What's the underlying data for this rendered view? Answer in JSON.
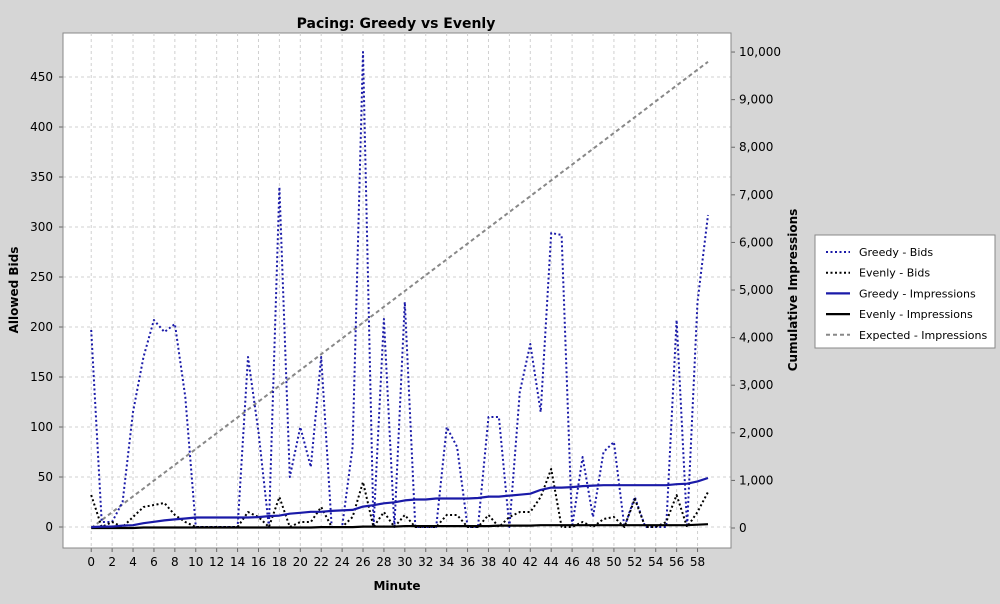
{
  "chart_data": {
    "type": "line",
    "title": "Pacing: Greedy vs Evenly",
    "xlabel": "Minute",
    "ylabel_left": "Allowed Bids",
    "ylabel_right": "Cumulative Impressions",
    "x": [
      0,
      1,
      2,
      3,
      4,
      5,
      6,
      7,
      8,
      9,
      10,
      11,
      12,
      13,
      14,
      15,
      16,
      17,
      18,
      19,
      20,
      21,
      22,
      23,
      24,
      25,
      26,
      27,
      28,
      29,
      30,
      31,
      32,
      33,
      34,
      35,
      36,
      37,
      38,
      39,
      40,
      41,
      42,
      43,
      44,
      45,
      46,
      47,
      48,
      49,
      50,
      51,
      52,
      53,
      54,
      55,
      56,
      57,
      58,
      59
    ],
    "x_ticks": [
      0,
      2,
      4,
      6,
      8,
      10,
      12,
      14,
      16,
      18,
      20,
      22,
      24,
      26,
      28,
      30,
      32,
      34,
      36,
      38,
      40,
      42,
      44,
      46,
      48,
      50,
      52,
      54,
      56,
      58
    ],
    "xlim": [
      -2.7,
      61.2
    ],
    "left_axis": {
      "ticks": [
        0,
        50,
        100,
        150,
        200,
        250,
        300,
        350,
        400,
        450
      ],
      "ylim": [
        -21,
        494
      ]
    },
    "right_axis": {
      "ticks": [
        "0",
        "1,000",
        "2,000",
        "3,000",
        "4,000",
        "5,000",
        "6,000",
        "7,000",
        "8,000",
        "9,000",
        "10,000"
      ],
      "values": [
        0,
        1000,
        2000,
        3000,
        4000,
        5000,
        6000,
        7000,
        8000,
        9000,
        10000
      ],
      "ylim": [
        -420,
        10400
      ]
    },
    "grid": true,
    "legend_position": "right",
    "series": [
      {
        "name": "Greedy - Bids",
        "axis": "left",
        "color": "#1a1aa8",
        "style": "dotted",
        "values": [
          197,
          5,
          5,
          25,
          115,
          170,
          207,
          195,
          203,
          130,
          0,
          0,
          0,
          0,
          0,
          170,
          95,
          0,
          340,
          50,
          100,
          60,
          170,
          0,
          0,
          80,
          475,
          0,
          208,
          0,
          225,
          0,
          0,
          0,
          100,
          80,
          0,
          0,
          110,
          110,
          0,
          135,
          183,
          115,
          294,
          292,
          0,
          70,
          10,
          75,
          85,
          0,
          30,
          0,
          0,
          0,
          207,
          0,
          225,
          312
        ]
      },
      {
        "name": "Evenly - Bids",
        "axis": "left",
        "color": "#000000",
        "style": "dotted",
        "values": [
          32,
          0,
          5,
          0,
          10,
          20,
          22,
          24,
          12,
          5,
          0,
          0,
          0,
          0,
          0,
          15,
          10,
          0,
          30,
          0,
          5,
          5,
          20,
          0,
          0,
          10,
          45,
          0,
          15,
          0,
          12,
          0,
          0,
          0,
          12,
          12,
          0,
          0,
          12,
          0,
          10,
          15,
          15,
          30,
          58,
          0,
          0,
          5,
          0,
          8,
          10,
          0,
          28,
          0,
          0,
          5,
          32,
          0,
          15,
          35
        ]
      },
      {
        "name": "Greedy - Impressions",
        "axis": "right",
        "color": "#1a1aa8",
        "style": "solid",
        "values": [
          20,
          30,
          30,
          50,
          60,
          100,
          130,
          160,
          180,
          200,
          220,
          220,
          220,
          220,
          220,
          220,
          230,
          250,
          260,
          300,
          320,
          340,
          340,
          360,
          370,
          380,
          450,
          480,
          520,
          540,
          580,
          600,
          600,
          620,
          620,
          620,
          620,
          630,
          660,
          660,
          680,
          700,
          720,
          800,
          850,
          850,
          860,
          880,
          890,
          900,
          900,
          900,
          900,
          900,
          900,
          900,
          920,
          930,
          980,
          1050
        ]
      },
      {
        "name": "Evenly - Impressions",
        "axis": "right",
        "color": "#000000",
        "style": "solid",
        "values": [
          0,
          0,
          0,
          0,
          0,
          10,
          10,
          10,
          10,
          10,
          10,
          10,
          10,
          10,
          10,
          10,
          10,
          10,
          10,
          10,
          10,
          10,
          20,
          20,
          20,
          20,
          30,
          30,
          30,
          30,
          40,
          40,
          40,
          40,
          40,
          40,
          40,
          40,
          40,
          50,
          50,
          50,
          50,
          60,
          60,
          60,
          60,
          60,
          60,
          60,
          60,
          60,
          60,
          60,
          60,
          60,
          60,
          60,
          70,
          80
        ]
      },
      {
        "name": "Expected - Impressions",
        "axis": "right",
        "color": "#888888",
        "style": "dashed",
        "values": [
          0,
          166,
          332,
          498,
          664,
          830,
          996,
          1162,
          1328,
          1494,
          1660,
          1826,
          1992,
          2158,
          2324,
          2490,
          2656,
          2822,
          2988,
          3154,
          3320,
          3486,
          3652,
          3818,
          3984,
          4150,
          4316,
          4482,
          4648,
          4814,
          4980,
          5146,
          5312,
          5478,
          5644,
          5810,
          5976,
          6142,
          6308,
          6474,
          6640,
          6806,
          6972,
          7138,
          7304,
          7470,
          7636,
          7802,
          7968,
          8134,
          8300,
          8466,
          8632,
          8798,
          8964,
          9130,
          9296,
          9462,
          9628,
          9794
        ]
      }
    ]
  }
}
